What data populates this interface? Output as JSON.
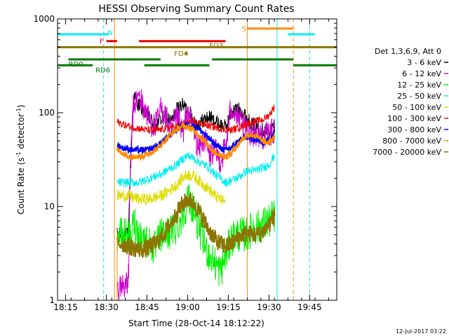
{
  "chart_data": {
    "type": "line",
    "title": "HESSI Observing Summary Count Rates",
    "xlabel": "Start Time (28-Oct-14 18:12:22)",
    "ylabel_main": "Count Rate (s",
    "ylabel_sup1": "-1",
    "ylabel_mid": " detector",
    "ylabel_sup2": "-1",
    "ylabel_end": ")",
    "y_scale": "log",
    "ylim": [
      1,
      1000
    ],
    "xlim_min": [
      0,
      103
    ],
    "x_ticks": [
      {
        "t": 3,
        "label": "18:15"
      },
      {
        "t": 18,
        "label": "18:30"
      },
      {
        "t": 33,
        "label": "18:45"
      },
      {
        "t": 48,
        "label": "19:00"
      },
      {
        "t": 63,
        "label": "19:15"
      },
      {
        "t": 78,
        "label": "19:30"
      },
      {
        "t": 93,
        "label": "19:45"
      }
    ],
    "y_ticks": [
      {
        "v": 1,
        "label": "1"
      },
      {
        "v": 10,
        "label": "10"
      },
      {
        "v": 100,
        "label": "100"
      },
      {
        "v": 1000,
        "label": "1000"
      }
    ],
    "legend_header": "Det 1,3,6,9, Att 0",
    "legend_placement": "right",
    "series": [
      {
        "name": "3 - 6 keV",
        "color": "#000000",
        "points": [
          [
            22,
            5
          ],
          [
            23,
            5
          ],
          [
            25,
            5
          ],
          [
            26,
            5
          ],
          [
            27,
            35
          ],
          [
            28,
            150
          ],
          [
            30,
            120
          ],
          [
            32,
            100
          ],
          [
            34,
            85
          ],
          [
            36,
            75
          ],
          [
            38,
            85
          ],
          [
            40,
            90
          ],
          [
            42,
            80
          ],
          [
            44,
            110
          ],
          [
            46,
            120
          ],
          [
            48,
            110
          ],
          [
            50,
            85
          ],
          [
            52,
            75
          ],
          [
            54,
            85
          ],
          [
            56,
            90
          ],
          [
            58,
            80
          ],
          [
            60,
            75
          ],
          [
            62,
            70
          ],
          [
            64,
            100
          ],
          [
            66,
            110
          ],
          [
            68,
            105
          ],
          [
            70,
            85
          ],
          [
            72,
            75
          ],
          [
            74,
            70
          ],
          [
            76,
            65
          ],
          [
            78,
            63
          ],
          [
            80,
            75
          ]
        ]
      },
      {
        "name": "6 - 12 keV",
        "color": "#cc00cc",
        "points": [
          [
            22,
            1.3
          ],
          [
            24,
            1.5
          ],
          [
            26,
            1.4
          ],
          [
            27,
            40
          ],
          [
            28,
            120
          ],
          [
            30,
            150
          ],
          [
            32,
            110
          ],
          [
            34,
            80
          ],
          [
            36,
            70
          ],
          [
            38,
            110
          ],
          [
            40,
            90
          ],
          [
            42,
            60
          ],
          [
            44,
            90
          ],
          [
            46,
            60
          ],
          [
            48,
            100
          ],
          [
            50,
            70
          ],
          [
            52,
            40
          ],
          [
            54,
            55
          ],
          [
            56,
            35
          ],
          [
            58,
            40
          ],
          [
            60,
            30
          ],
          [
            62,
            45
          ],
          [
            64,
            120
          ],
          [
            66,
            90
          ],
          [
            68,
            75
          ],
          [
            70,
            65
          ],
          [
            72,
            60
          ],
          [
            74,
            60
          ],
          [
            76,
            55
          ],
          [
            78,
            60
          ],
          [
            80,
            65
          ]
        ]
      },
      {
        "name": "12 - 25 keV",
        "color": "#00ee00",
        "points": [
          [
            22,
            5
          ],
          [
            24,
            5
          ],
          [
            26,
            5
          ],
          [
            27,
            4
          ],
          [
            28,
            7
          ],
          [
            30,
            5
          ],
          [
            32,
            4.5
          ],
          [
            34,
            4
          ],
          [
            36,
            3.5
          ],
          [
            38,
            5
          ],
          [
            40,
            5
          ],
          [
            42,
            5.5
          ],
          [
            44,
            6
          ],
          [
            46,
            8
          ],
          [
            48,
            12
          ],
          [
            50,
            10
          ],
          [
            52,
            6
          ],
          [
            54,
            4
          ],
          [
            56,
            3
          ],
          [
            58,
            2.5
          ],
          [
            60,
            2
          ],
          [
            62,
            3
          ],
          [
            64,
            4.5
          ],
          [
            66,
            5
          ],
          [
            68,
            5
          ],
          [
            70,
            5
          ],
          [
            72,
            6
          ],
          [
            74,
            6
          ],
          [
            76,
            6.5
          ],
          [
            78,
            7
          ],
          [
            80,
            8
          ]
        ]
      },
      {
        "name": "25 - 50 keV",
        "color": "#00eeee",
        "points": [
          [
            22,
            18
          ],
          [
            24,
            18
          ],
          [
            26,
            18
          ],
          [
            28,
            18
          ],
          [
            30,
            18
          ],
          [
            32,
            19
          ],
          [
            34,
            20
          ],
          [
            36,
            21
          ],
          [
            38,
            22
          ],
          [
            40,
            24
          ],
          [
            42,
            26
          ],
          [
            44,
            28
          ],
          [
            46,
            32
          ],
          [
            48,
            35
          ],
          [
            50,
            33
          ],
          [
            52,
            30
          ],
          [
            54,
            28
          ],
          [
            56,
            26
          ],
          [
            58,
            22
          ],
          [
            60,
            20
          ],
          [
            62,
            18
          ],
          [
            64,
            19
          ],
          [
            66,
            20
          ],
          [
            68,
            22
          ],
          [
            70,
            24
          ],
          [
            72,
            24
          ],
          [
            74,
            25
          ],
          [
            76,
            26
          ],
          [
            78,
            28
          ],
          [
            80,
            35
          ]
        ]
      },
      {
        "name": "50 - 100 keV",
        "color": "#dddd00",
        "points": [
          [
            22,
            13
          ],
          [
            24,
            13
          ],
          [
            26,
            13
          ],
          [
            28,
            12.5
          ],
          [
            30,
            12
          ],
          [
            32,
            12
          ],
          [
            34,
            12
          ],
          [
            36,
            12.5
          ],
          [
            38,
            13
          ],
          [
            40,
            14
          ],
          [
            42,
            15.5
          ],
          [
            44,
            17
          ],
          [
            46,
            20
          ],
          [
            48,
            22
          ],
          [
            50,
            21
          ],
          [
            52,
            19
          ],
          [
            54,
            17
          ],
          [
            56,
            15
          ],
          [
            58,
            13
          ],
          [
            60,
            12
          ],
          [
            62,
            11
          ]
        ]
      },
      {
        "name": "100 - 300 keV",
        "color": "#ee0000",
        "points": [
          [
            22,
            80
          ],
          [
            24,
            75
          ],
          [
            26,
            72
          ],
          [
            28,
            70
          ],
          [
            30,
            68
          ],
          [
            32,
            66
          ],
          [
            34,
            65
          ],
          [
            36,
            65
          ],
          [
            38,
            66
          ],
          [
            40,
            68
          ],
          [
            42,
            70
          ],
          [
            44,
            72
          ],
          [
            46,
            75
          ],
          [
            48,
            78
          ],
          [
            50,
            80
          ],
          [
            52,
            78
          ],
          [
            54,
            75
          ],
          [
            56,
            72
          ],
          [
            58,
            70
          ],
          [
            60,
            68
          ],
          [
            62,
            66
          ],
          [
            64,
            65
          ],
          [
            66,
            68
          ],
          [
            68,
            72
          ],
          [
            70,
            76
          ],
          [
            72,
            80
          ],
          [
            74,
            82
          ],
          [
            76,
            85
          ],
          [
            78,
            95
          ],
          [
            80,
            115
          ]
        ]
      },
      {
        "name": "300 - 800 keV",
        "color": "#0000ee",
        "points": [
          [
            22,
            45
          ],
          [
            24,
            42
          ],
          [
            26,
            41
          ],
          [
            28,
            40
          ],
          [
            30,
            40
          ],
          [
            32,
            40
          ],
          [
            34,
            41
          ],
          [
            36,
            43
          ],
          [
            38,
            47
          ],
          [
            40,
            53
          ],
          [
            42,
            60
          ],
          [
            44,
            67
          ],
          [
            46,
            73
          ],
          [
            48,
            75
          ],
          [
            50,
            73
          ],
          [
            52,
            68
          ],
          [
            54,
            60
          ],
          [
            56,
            52
          ],
          [
            58,
            46
          ],
          [
            60,
            42
          ],
          [
            62,
            40
          ],
          [
            64,
            42
          ],
          [
            66,
            48
          ],
          [
            68,
            53
          ],
          [
            70,
            55
          ],
          [
            72,
            53
          ],
          [
            74,
            50
          ],
          [
            76,
            48
          ],
          [
            78,
            52
          ],
          [
            80,
            62
          ]
        ]
      },
      {
        "name": "800 - 7000 keV",
        "color": "#ff8c00",
        "points": [
          [
            22,
            40
          ],
          [
            24,
            37
          ],
          [
            26,
            35
          ],
          [
            28,
            34
          ],
          [
            30,
            34
          ],
          [
            32,
            35
          ],
          [
            34,
            37
          ],
          [
            36,
            40
          ],
          [
            38,
            45
          ],
          [
            40,
            52
          ],
          [
            42,
            60
          ],
          [
            44,
            67
          ],
          [
            46,
            72
          ],
          [
            48,
            70
          ],
          [
            50,
            66
          ],
          [
            52,
            58
          ],
          [
            54,
            50
          ],
          [
            56,
            43
          ],
          [
            58,
            38
          ],
          [
            60,
            35
          ],
          [
            62,
            34
          ],
          [
            64,
            37
          ],
          [
            66,
            44
          ],
          [
            68,
            52
          ],
          [
            70,
            58
          ],
          [
            72,
            58
          ],
          [
            74,
            54
          ],
          [
            76,
            49
          ],
          [
            78,
            48
          ],
          [
            80,
            55
          ]
        ]
      },
      {
        "name": "7000 - 20000 keV",
        "color": "#8b7500",
        "points": [
          [
            22,
            4
          ],
          [
            24,
            4
          ],
          [
            26,
            3.8
          ],
          [
            28,
            3.6
          ],
          [
            30,
            3.5
          ],
          [
            32,
            3.5
          ],
          [
            34,
            3.7
          ],
          [
            36,
            4
          ],
          [
            38,
            4.6
          ],
          [
            40,
            5.5
          ],
          [
            42,
            6.8
          ],
          [
            44,
            8.5
          ],
          [
            46,
            10.5
          ],
          [
            48,
            12
          ],
          [
            50,
            11
          ],
          [
            52,
            9
          ],
          [
            54,
            7
          ],
          [
            56,
            5.5
          ],
          [
            58,
            4.5
          ],
          [
            60,
            4
          ],
          [
            62,
            3.8
          ],
          [
            64,
            4
          ],
          [
            66,
            4.5
          ],
          [
            68,
            5
          ],
          [
            70,
            5.2
          ],
          [
            72,
            5
          ],
          [
            74,
            5
          ],
          [
            76,
            5.5
          ],
          [
            78,
            6.5
          ],
          [
            80,
            8
          ]
        ]
      }
    ],
    "cutoff_time": 22,
    "event_bars": [
      {
        "label": "N",
        "color": "#00eeee",
        "y": 685,
        "x0": 0,
        "x1": 19
      },
      {
        "label": "N",
        "color": "#00eeee",
        "y": 685,
        "x0": 85,
        "x1": 95
      },
      {
        "label": "F",
        "color": "#ee0000",
        "y": 580,
        "x0": 18,
        "x1": 22
      },
      {
        "label": "",
        "color": "#ee0000",
        "y": 580,
        "x0": 30,
        "x1": 62
      },
      {
        "label": "FD3",
        "color": "#8b7500",
        "y": 500,
        "x0": 0,
        "x1": 103
      },
      {
        "label": "S",
        "color": "#ff8c00",
        "y": 790,
        "x0": 70,
        "x1": 87
      },
      {
        "label": "FD4",
        "color": "#8b7500",
        "y": 430,
        "x0": 47,
        "x1": 48
      },
      {
        "label": "RD0",
        "color": "#007700",
        "y": 370,
        "x0": 4,
        "x1": 38
      },
      {
        "label": "",
        "color": "#007700",
        "y": 370,
        "x0": 57,
        "x1": 87
      },
      {
        "label": "RD6",
        "color": "#007700",
        "y": 320,
        "x0": 0,
        "x1": 13
      },
      {
        "label": "",
        "color": "#007700",
        "y": 320,
        "x0": 32,
        "x1": 56
      },
      {
        "label": "",
        "color": "#007700",
        "y": 320,
        "x0": 87,
        "x1": 103
      }
    ],
    "vlines": [
      {
        "t": 21,
        "color": "#ff8c00",
        "dash": false
      },
      {
        "t": 17,
        "color": "#00eeee",
        "dash": true
      },
      {
        "t": 70,
        "color": "#ff8c00",
        "dash": false
      },
      {
        "t": 81,
        "color": "#00eeee",
        "dash": false
      },
      {
        "t": 87,
        "color": "#ff8c00",
        "dash": true
      },
      {
        "t": 93,
        "color": "#00eeee",
        "dash": true
      }
    ]
  },
  "footer": {
    "timestamp": "12-Jul-2017 03:22"
  }
}
